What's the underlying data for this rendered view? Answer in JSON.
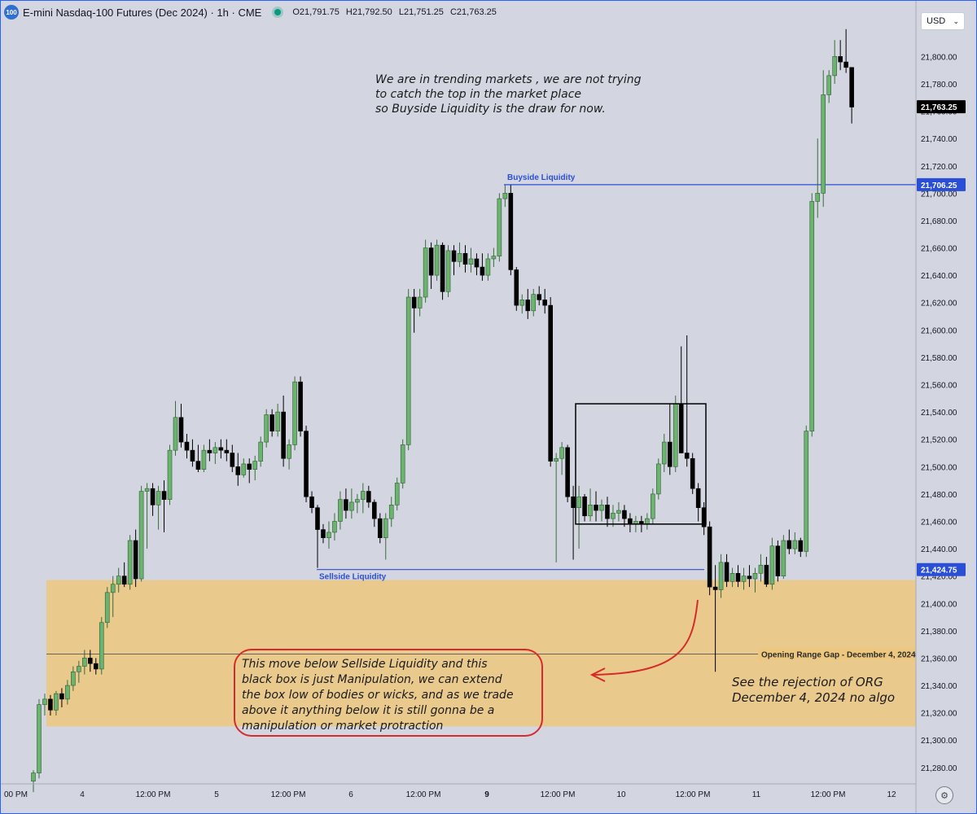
{
  "header": {
    "logo_text": "100",
    "title": "E-mini Nasdaq-100 Futures (Dec 2024) · 1h · CME",
    "open": "O21,791.75",
    "high": "H21,792.50",
    "low": "L21,751.25",
    "close": "C21,763.25"
  },
  "currency": {
    "label": "USD",
    "icon": "chevron-down-icon"
  },
  "settings_icon": "gear-icon",
  "colors": {
    "background": "#d3d6e0",
    "up": "#6bb36f",
    "down": "#000000",
    "liquidity_line": "#2a4fd6",
    "gap_zone": "#ecc77d",
    "annotation": "#d72b2b",
    "live_dot": "#089981"
  },
  "annotations": {
    "top_note": [
      "We are in trending markets , we are not trying",
      "to catch the top in the market place",
      "so Buyside Liquidity is the draw for now."
    ],
    "box_note": [
      "This move below Sellside Liquidity and this",
      "black box is just Manipulation, we can extend",
      "the box low of bodies or wicks, and as we trade",
      "above it anything below it is still gonna be a",
      "manipulation or market protraction"
    ],
    "right_note": [
      "See the rejection of ORG",
      "December 4, 2024 no algo"
    ]
  },
  "chart_data": {
    "type": "candlestick",
    "x_ticks": [
      "00 PM",
      "4",
      "12:00 PM",
      "5",
      "12:00 PM",
      "6",
      "12:00 PM",
      "9",
      "12:00 PM",
      "10",
      "12:00 PM",
      "11",
      "12:00 PM",
      "12"
    ],
    "y_ticks": [
      21280,
      21300,
      21320,
      21340,
      21360,
      21380,
      21400,
      21420,
      21440,
      21460,
      21480,
      21500,
      21520,
      21540,
      21560,
      21580,
      21600,
      21620,
      21640,
      21660,
      21680,
      21700,
      21720,
      21740,
      21760,
      21780,
      21800
    ],
    "y_tick_labels": [
      "21,280.00",
      "21,300.00",
      "21,320.00",
      "21,340.00",
      "21,360.00",
      "21,380.00",
      "21,400.00",
      "21,420.00",
      "21,440.00",
      "21,460.00",
      "21,480.00",
      "21,500.00",
      "21,520.00",
      "21,540.00",
      "21,560.00",
      "21,580.00",
      "21,600.00",
      "21,620.00",
      "21,640.00",
      "21,660.00",
      "21,680.00",
      "21,700.00",
      "21,720.00",
      "21,740.00",
      "21,760.00",
      "21,780.00",
      "21,800.00"
    ],
    "ylim": [
      21268,
      21830
    ],
    "grid": false,
    "price_labels": [
      {
        "value": 21763.25,
        "text": "21,763.25",
        "color": "#000000"
      },
      {
        "value": 21706.25,
        "text": "21,706.25",
        "color": "#2a4fd6"
      },
      {
        "value": 21424.75,
        "text": "21,424.75",
        "color": "#2a4fd6"
      }
    ],
    "levels": [
      {
        "name": "Buyside Liquidity",
        "value": 21706.25
      },
      {
        "name": "Sellside Liquidity",
        "value": 21424.75
      }
    ],
    "opening_range_gap": {
      "label": "Opening Range Gap - December 4, 2024",
      "low": 21310,
      "high": 21417,
      "mid": 21363
    },
    "manipulation_box": {
      "low": 21458,
      "high": 21546
    },
    "candles": [
      [
        21270,
        21278,
        21262,
        21276
      ],
      [
        21276,
        21330,
        21272,
        21326
      ],
      [
        21326,
        21334,
        21318,
        21330
      ],
      [
        21330,
        21333,
        21318,
        21322
      ],
      [
        21322,
        21336,
        21318,
        21334
      ],
      [
        21334,
        21338,
        21324,
        21330
      ],
      [
        21330,
        21344,
        21326,
        21340
      ],
      [
        21340,
        21354,
        21336,
        21350
      ],
      [
        21350,
        21358,
        21342,
        21354
      ],
      [
        21354,
        21366,
        21348,
        21360
      ],
      [
        21360,
        21366,
        21350,
        21356
      ],
      [
        21356,
        21360,
        21348,
        21352
      ],
      [
        21352,
        21390,
        21348,
        21386
      ],
      [
        21386,
        21412,
        21382,
        21408
      ],
      [
        21408,
        21420,
        21390,
        21414
      ],
      [
        21414,
        21426,
        21408,
        21420
      ],
      [
        21420,
        21430,
        21412,
        21414
      ],
      [
        21414,
        21450,
        21410,
        21446
      ],
      [
        21446,
        21454,
        21412,
        21418
      ],
      [
        21418,
        21486,
        21416,
        21482
      ],
      [
        21482,
        21488,
        21440,
        21484
      ],
      [
        21484,
        21488,
        21464,
        21472
      ],
      [
        21472,
        21486,
        21454,
        21482
      ],
      [
        21482,
        21490,
        21452,
        21476
      ],
      [
        21476,
        21516,
        21472,
        21512
      ],
      [
        21512,
        21548,
        21508,
        21536
      ],
      [
        21536,
        21546,
        21514,
        21518
      ],
      [
        21518,
        21524,
        21506,
        21512
      ],
      [
        21512,
        21520,
        21500,
        21504
      ],
      [
        21504,
        21516,
        21496,
        21498
      ],
      [
        21498,
        21516,
        21496,
        21512
      ],
      [
        21512,
        21520,
        21504,
        21510
      ],
      [
        21510,
        21518,
        21502,
        21514
      ],
      [
        21514,
        21520,
        21506,
        21512
      ],
      [
        21512,
        21520,
        21504,
        21510
      ],
      [
        21510,
        21516,
        21496,
        21500
      ],
      [
        21500,
        21510,
        21486,
        21494
      ],
      [
        21494,
        21506,
        21492,
        21502
      ],
      [
        21502,
        21506,
        21488,
        21498
      ],
      [
        21498,
        21508,
        21490,
        21504
      ],
      [
        21504,
        21522,
        21500,
        21518
      ],
      [
        21518,
        21542,
        21514,
        21538
      ],
      [
        21538,
        21542,
        21522,
        21526
      ],
      [
        21526,
        21546,
        21522,
        21540
      ],
      [
        21540,
        21552,
        21500,
        21506
      ],
      [
        21506,
        21520,
        21498,
        21516
      ],
      [
        21516,
        21566,
        21512,
        21562
      ],
      [
        21562,
        21566,
        21522,
        21526
      ],
      [
        21526,
        21530,
        21474,
        21478
      ],
      [
        21478,
        21482,
        21466,
        21470
      ],
      [
        21470,
        21472,
        21426,
        21454
      ],
      [
        21454,
        21458,
        21444,
        21448
      ],
      [
        21448,
        21460,
        21440,
        21452
      ],
      [
        21452,
        21466,
        21446,
        21460
      ],
      [
        21460,
        21482,
        21454,
        21476
      ],
      [
        21476,
        21484,
        21462,
        21468
      ],
      [
        21468,
        21484,
        21462,
        21474
      ],
      [
        21474,
        21480,
        21466,
        21476
      ],
      [
        21476,
        21488,
        21466,
        21482
      ],
      [
        21482,
        21486,
        21470,
        21474
      ],
      [
        21474,
        21476,
        21456,
        21462
      ],
      [
        21462,
        21466,
        21444,
        21448
      ],
      [
        21448,
        21466,
        21432,
        21462
      ],
      [
        21462,
        21478,
        21456,
        21472
      ],
      [
        21472,
        21492,
        21468,
        21488
      ],
      [
        21488,
        21520,
        21484,
        21516
      ],
      [
        21516,
        21630,
        21512,
        21624
      ],
      [
        21624,
        21630,
        21598,
        21616
      ],
      [
        21616,
        21630,
        21610,
        21624
      ],
      [
        21624,
        21666,
        21620,
        21660
      ],
      [
        21660,
        21664,
        21630,
        21640
      ],
      [
        21640,
        21666,
        21636,
        21662
      ],
      [
        21662,
        21664,
        21622,
        21628
      ],
      [
        21628,
        21662,
        21624,
        21658
      ],
      [
        21658,
        21662,
        21640,
        21650
      ],
      [
        21650,
        21664,
        21646,
        21656
      ],
      [
        21656,
        21662,
        21642,
        21648
      ],
      [
        21648,
        21660,
        21642,
        21652
      ],
      [
        21652,
        21656,
        21640,
        21646
      ],
      [
        21646,
        21656,
        21636,
        21640
      ],
      [
        21640,
        21656,
        21636,
        21652
      ],
      [
        21652,
        21660,
        21646,
        21654
      ],
      [
        21654,
        21700,
        21650,
        21696
      ],
      [
        21696,
        21706,
        21690,
        21700
      ],
      [
        21700,
        21706,
        21640,
        21644
      ],
      [
        21644,
        21646,
        21614,
        21618
      ],
      [
        21618,
        21626,
        21612,
        21622
      ],
      [
        21622,
        21630,
        21608,
        21614
      ],
      [
        21614,
        21630,
        21610,
        21626
      ],
      [
        21626,
        21632,
        21618,
        21622
      ],
      [
        21622,
        21630,
        21612,
        21618
      ],
      [
        21618,
        21624,
        21500,
        21504
      ],
      [
        21504,
        21510,
        21430,
        21506
      ],
      [
        21506,
        21518,
        21494,
        21514
      ],
      [
        21514,
        21516,
        21474,
        21478
      ],
      [
        21478,
        21486,
        21432,
        21470
      ],
      [
        21470,
        21486,
        21440,
        21478
      ],
      [
        21478,
        21480,
        21460,
        21464
      ],
      [
        21464,
        21484,
        21460,
        21472
      ],
      [
        21472,
        21482,
        21460,
        21468
      ],
      [
        21468,
        21476,
        21460,
        21472
      ],
      [
        21472,
        21478,
        21456,
        21462
      ],
      [
        21462,
        21472,
        21456,
        21466
      ],
      [
        21466,
        21474,
        21460,
        21468
      ],
      [
        21468,
        21472,
        21456,
        21462
      ],
      [
        21462,
        21466,
        21452,
        21458
      ],
      [
        21458,
        21464,
        21452,
        21460
      ],
      [
        21460,
        21464,
        21452,
        21458
      ],
      [
        21458,
        21466,
        21454,
        21462
      ],
      [
        21462,
        21484,
        21458,
        21480
      ],
      [
        21480,
        21506,
        21476,
        21502
      ],
      [
        21502,
        21524,
        21496,
        21518
      ],
      [
        21518,
        21546,
        21494,
        21500
      ],
      [
        21500,
        21552,
        21496,
        21546
      ],
      [
        21546,
        21588,
        21510,
        21510
      ],
      [
        21510,
        21596,
        21500,
        21506
      ],
      [
        21506,
        21510,
        21480,
        21484
      ],
      [
        21484,
        21488,
        21460,
        21470
      ],
      [
        21470,
        21474,
        21450,
        21456
      ],
      [
        21456,
        21460,
        21406,
        21412
      ],
      [
        21412,
        21428,
        21350,
        21410
      ],
      [
        21410,
        21436,
        21404,
        21430
      ],
      [
        21430,
        21436,
        21412,
        21416
      ],
      [
        21416,
        21426,
        21412,
        21422
      ],
      [
        21422,
        21428,
        21412,
        21416
      ],
      [
        21416,
        21426,
        21410,
        21420
      ],
      [
        21420,
        21428,
        21412,
        21418
      ],
      [
        21418,
        21426,
        21408,
        21422
      ],
      [
        21422,
        21436,
        21416,
        21428
      ],
      [
        21428,
        21434,
        21412,
        21414
      ],
      [
        21414,
        21448,
        21410,
        21442
      ],
      [
        21442,
        21446,
        21416,
        21420
      ],
      [
        21420,
        21450,
        21418,
        21446
      ],
      [
        21446,
        21454,
        21436,
        21440
      ],
      [
        21440,
        21452,
        21436,
        21446
      ],
      [
        21446,
        21448,
        21434,
        21438
      ],
      [
        21438,
        21530,
        21434,
        21526
      ],
      [
        21526,
        21700,
        21522,
        21694
      ],
      [
        21694,
        21740,
        21682,
        21700
      ],
      [
        21700,
        21790,
        21690,
        21772
      ],
      [
        21772,
        21790,
        21766,
        21786
      ],
      [
        21786,
        21812,
        21780,
        21800
      ],
      [
        21800,
        21812,
        21790,
        21796
      ],
      [
        21796,
        21820,
        21788,
        21792
      ],
      [
        21792,
        21792,
        21751,
        21763
      ]
    ]
  }
}
